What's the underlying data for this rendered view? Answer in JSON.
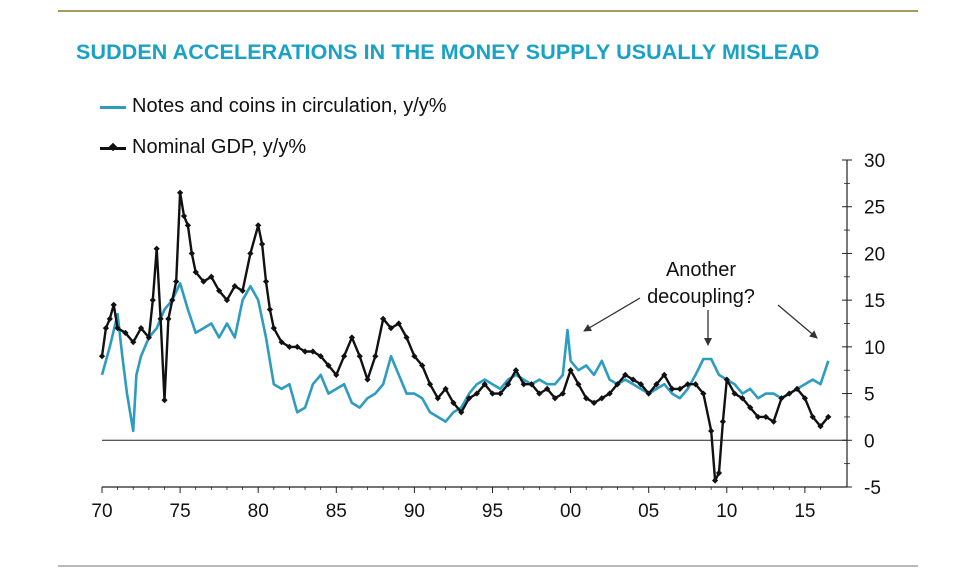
{
  "chart_data": {
    "type": "line",
    "title": "SUDDEN ACCELERATIONS IN THE MONEY SUPPLY USUALLY MISLEAD",
    "xlabel": "",
    "ylabel": "",
    "xlim": [
      1970,
      2016.8
    ],
    "ylim": [
      -5,
      30
    ],
    "x_ticks": [
      1970,
      1975,
      1980,
      1985,
      1990,
      1995,
      2000,
      2005,
      2010,
      2015
    ],
    "x_tick_labels": [
      "70",
      "75",
      "80",
      "85",
      "90",
      "95",
      "00",
      "05",
      "10",
      "15"
    ],
    "y_ticks": [
      -5,
      0,
      5,
      10,
      15,
      20,
      25,
      30
    ],
    "y_tick_labels": [
      "-5",
      "0",
      "5",
      "10",
      "15",
      "20",
      "25",
      "30"
    ],
    "y_axis_side": "right",
    "grid": false,
    "legend_position": "top-left",
    "annotation": [
      "Another",
      "decoupling?"
    ],
    "colors": {
      "notes": "#2d9cc0",
      "gdp": "#111111",
      "title": "#1aa1c6"
    },
    "series": [
      {
        "name": "Notes and coins in circulation, y/y%",
        "style": "line",
        "x": [
          1970,
          1970.5,
          1971,
          1971.3,
          1971.6,
          1972,
          1972.2,
          1972.5,
          1973,
          1973.5,
          1974,
          1974.5,
          1975,
          1975.5,
          1976,
          1976.5,
          1977,
          1977.5,
          1978,
          1978.5,
          1979,
          1979.5,
          1980,
          1980.5,
          1981,
          1981.5,
          1982,
          1982.5,
          1983,
          1983.5,
          1984,
          1984.5,
          1985,
          1985.5,
          1986,
          1986.5,
          1987,
          1987.5,
          1988,
          1988.5,
          1989,
          1989.5,
          1990,
          1990.5,
          1991,
          1991.5,
          1992,
          1992.5,
          1993,
          1993.5,
          1994,
          1994.5,
          1995,
          1995.5,
          1996,
          1996.5,
          1997,
          1997.5,
          1998,
          1998.5,
          1999,
          1999.5,
          1999.8,
          2000,
          2000.5,
          2001,
          2001.5,
          2002,
          2002.5,
          2003,
          2003.5,
          2004,
          2004.5,
          2005,
          2005.5,
          2006,
          2006.5,
          2007,
          2007.5,
          2008,
          2008.5,
          2009,
          2009.5,
          2010,
          2010.5,
          2011,
          2011.5,
          2012,
          2012.5,
          2013,
          2013.5,
          2014,
          2014.5,
          2015,
          2015.5,
          2016,
          2016.5
        ],
        "y": [
          7,
          10,
          13.5,
          9,
          5,
          1,
          7,
          9,
          11,
          12,
          14,
          15,
          16.8,
          14,
          11.5,
          12,
          12.5,
          11,
          12.5,
          11,
          15,
          16.5,
          15,
          11,
          6,
          5.5,
          6,
          3,
          3.5,
          6,
          7,
          5,
          5.5,
          6,
          4,
          3.5,
          4.5,
          5,
          6,
          9,
          7,
          5,
          5,
          4.5,
          3,
          2.5,
          2,
          3,
          3.5,
          5,
          6,
          6.5,
          6,
          5.5,
          6.5,
          7,
          6.5,
          6,
          6.5,
          6,
          6,
          7,
          11.8,
          8.5,
          7.5,
          8,
          7,
          8.5,
          6.5,
          6,
          6.5,
          6,
          5.5,
          5,
          5.5,
          6,
          5,
          4.5,
          5.5,
          7,
          8.7,
          8.7,
          7,
          6.5,
          6,
          5,
          5.5,
          4.5,
          5,
          5,
          4.5,
          5,
          5.5,
          6,
          6.5,
          6,
          8.5
        ]
      },
      {
        "name": "Nominal GDP, y/y%",
        "style": "line-with-markers",
        "x": [
          1970,
          1970.25,
          1970.5,
          1970.75,
          1971,
          1971.5,
          1972,
          1972.5,
          1973,
          1973.25,
          1973.5,
          1973.75,
          1974,
          1974.25,
          1974.5,
          1974.75,
          1975,
          1975.25,
          1975.5,
          1975.75,
          1976,
          1976.5,
          1977,
          1977.5,
          1978,
          1978.5,
          1979,
          1979.5,
          1980,
          1980.25,
          1980.5,
          1980.75,
          1981,
          1981.5,
          1982,
          1982.5,
          1983,
          1983.5,
          1984,
          1984.5,
          1985,
          1985.5,
          1986,
          1986.5,
          1987,
          1987.5,
          1988,
          1988.5,
          1989,
          1989.5,
          1990,
          1990.5,
          1991,
          1991.5,
          1992,
          1992.5,
          1993,
          1993.5,
          1994,
          1994.5,
          1995,
          1995.5,
          1996,
          1996.5,
          1997,
          1997.5,
          1998,
          1998.5,
          1999,
          1999.5,
          2000,
          2000.5,
          2001,
          2001.5,
          2002,
          2002.5,
          2003,
          2003.5,
          2004,
          2004.5,
          2005,
          2005.5,
          2006,
          2006.5,
          2007,
          2007.5,
          2008,
          2008.5,
          2009,
          2009.25,
          2009.5,
          2009.75,
          2010,
          2010.5,
          2011,
          2011.5,
          2012,
          2012.5,
          2013,
          2013.5,
          2014,
          2014.5,
          2015,
          2015.5,
          2016,
          2016.5
        ],
        "y": [
          9,
          12,
          13,
          14.5,
          12,
          11.5,
          10.5,
          12,
          11,
          15,
          20.5,
          13,
          4.3,
          13,
          15,
          17,
          26.5,
          24,
          23,
          20,
          18,
          17,
          17.5,
          16,
          15,
          16.5,
          16,
          20,
          23,
          21,
          17,
          14,
          12,
          10.5,
          10,
          10,
          9.5,
          9.5,
          9,
          8,
          7,
          9,
          11,
          9,
          6.5,
          9,
          13,
          12,
          12.5,
          11,
          9,
          8,
          6,
          4.5,
          5.5,
          4,
          3,
          4.5,
          5,
          6,
          5,
          5,
          6,
          7.5,
          6,
          6,
          5,
          5.5,
          4.5,
          5,
          7.5,
          6,
          4.5,
          4,
          4.5,
          5,
          6,
          7,
          6.5,
          6,
          5,
          6,
          7,
          5.5,
          5.5,
          6,
          6,
          5,
          1,
          -4.3,
          -3.5,
          2,
          6.5,
          5,
          4.5,
          3.5,
          2.5,
          2.5,
          2,
          4.5,
          5,
          5.5,
          4.5,
          2.5,
          1.5,
          2.5
        ]
      }
    ]
  }
}
